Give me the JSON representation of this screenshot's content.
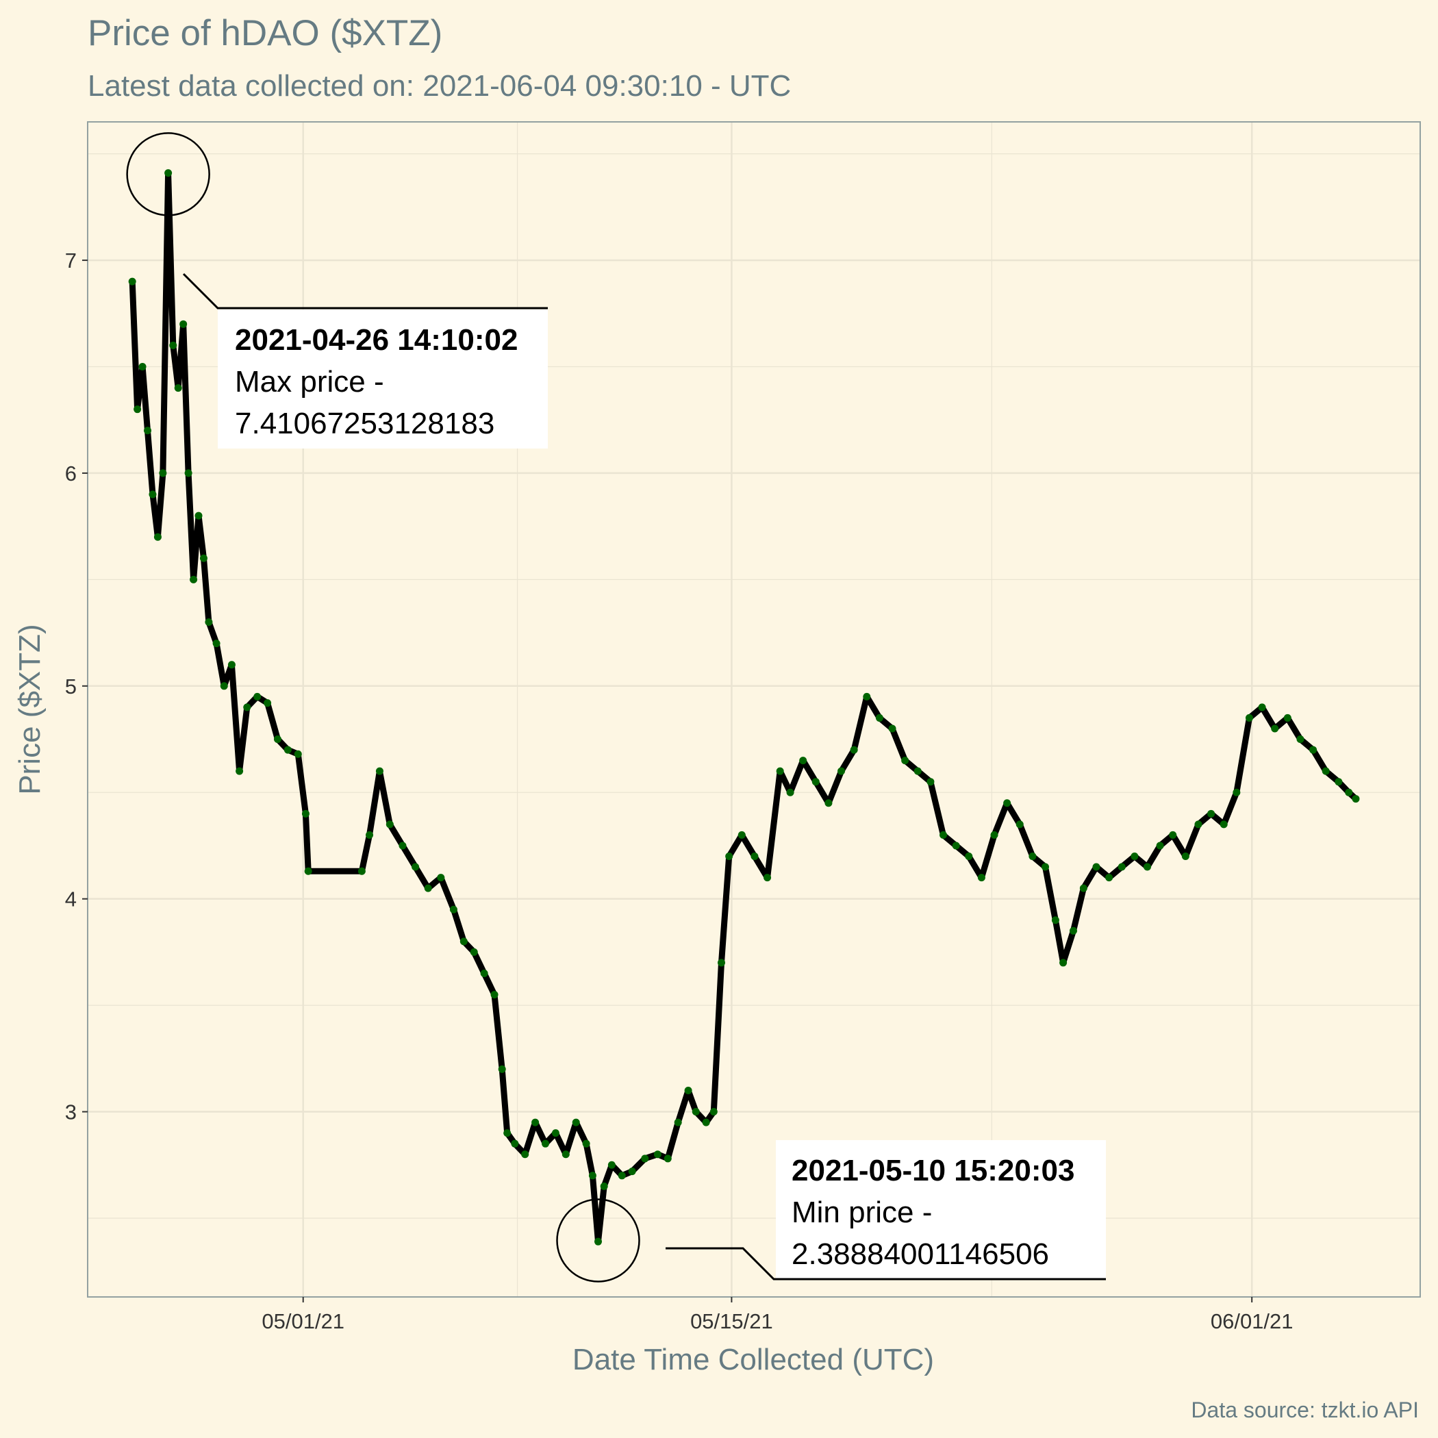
{
  "chart_data": {
    "type": "line",
    "title": "Price of hDAO ($XTZ)",
    "subtitle": "Latest data collected on: 2021-06-04 09:30:10  - UTC",
    "xlabel": "Date Time Collected (UTC)",
    "ylabel": "Price ($XTZ)",
    "caption": "Data source: tzkt.io API",
    "x_ticks": [
      "05/01/21",
      "05/15/21",
      "06/01/21"
    ],
    "y_ticks": [
      "3",
      "4",
      "5",
      "6",
      "7"
    ],
    "xlim": [
      "2021-04-23T23:00",
      "2021-06-06T12:00"
    ],
    "ylim": [
      2.13,
      7.65
    ],
    "grid": true,
    "series": [
      {
        "style": "black segments with dark-green points",
        "points": [
          [
            "2021-04-25T10:00",
            6.9
          ],
          [
            "2021-04-25T14:00",
            6.3
          ],
          [
            "2021-04-25T18:00",
            6.5
          ],
          [
            "2021-04-25T22:00",
            6.2
          ],
          [
            "2021-04-26T02:00",
            5.9
          ],
          [
            "2021-04-26T06:00",
            5.7
          ],
          [
            "2021-04-26T10:00",
            6.0
          ],
          [
            "2021-04-26T14:10",
            7.41
          ],
          [
            "2021-04-26T18:00",
            6.6
          ],
          [
            "2021-04-26T22:00",
            6.4
          ],
          [
            "2021-04-27T02:00",
            6.7
          ],
          [
            "2021-04-27T06:00",
            6.0
          ],
          [
            "2021-04-27T10:00",
            5.5
          ],
          [
            "2021-04-27T14:00",
            5.8
          ],
          [
            "2021-04-27T18:00",
            5.6
          ],
          [
            "2021-04-27T22:00",
            5.3
          ],
          [
            "2021-04-28T04:00",
            5.2
          ],
          [
            "2021-04-28T10:00",
            5.0
          ],
          [
            "2021-04-28T16:00",
            5.1
          ],
          [
            "2021-04-28T22:00",
            4.6
          ],
          [
            "2021-04-29T04:00",
            4.9
          ],
          [
            "2021-04-29T12:00",
            4.95
          ],
          [
            "2021-04-29T20:00",
            4.92
          ],
          [
            "2021-04-30T04:00",
            4.75
          ],
          [
            "2021-04-30T12:00",
            4.7
          ],
          [
            "2021-04-30T20:00",
            4.68
          ],
          [
            "2021-05-01T02:00",
            4.4
          ],
          [
            "2021-05-01T04:00",
            4.13
          ],
          [
            "2021-05-02T22:00",
            4.13
          ],
          [
            "2021-05-03T04:00",
            4.3
          ],
          [
            "2021-05-03T12:00",
            4.6
          ],
          [
            "2021-05-03T20:00",
            4.35
          ],
          [
            "2021-05-04T06:00",
            4.25
          ],
          [
            "2021-05-04T16:00",
            4.15
          ],
          [
            "2021-05-05T02:00",
            4.05
          ],
          [
            "2021-05-05T12:00",
            4.1
          ],
          [
            "2021-05-05T22:00",
            3.95
          ],
          [
            "2021-05-06T06:00",
            3.8
          ],
          [
            "2021-05-06T14:00",
            3.75
          ],
          [
            "2021-05-06T22:00",
            3.65
          ],
          [
            "2021-05-07T06:00",
            3.55
          ],
          [
            "2021-05-07T12:00",
            3.2
          ],
          [
            "2021-05-07T16:00",
            2.9
          ],
          [
            "2021-05-07T22:00",
            2.85
          ],
          [
            "2021-05-08T06:00",
            2.8
          ],
          [
            "2021-05-08T14:00",
            2.95
          ],
          [
            "2021-05-08T22:00",
            2.85
          ],
          [
            "2021-05-09T06:00",
            2.9
          ],
          [
            "2021-05-09T14:00",
            2.8
          ],
          [
            "2021-05-09T22:00",
            2.95
          ],
          [
            "2021-05-10T06:00",
            2.85
          ],
          [
            "2021-05-10T11:00",
            2.7
          ],
          [
            "2021-05-10T15:20",
            2.39
          ],
          [
            "2021-05-10T20:00",
            2.65
          ],
          [
            "2021-05-11T02:00",
            2.75
          ],
          [
            "2021-05-11T10:00",
            2.7
          ],
          [
            "2021-05-11T18:00",
            2.72
          ],
          [
            "2021-05-12T04:00",
            2.78
          ],
          [
            "2021-05-12T14:00",
            2.8
          ],
          [
            "2021-05-12T22:00",
            2.78
          ],
          [
            "2021-05-13T06:00",
            2.95
          ],
          [
            "2021-05-13T14:00",
            3.1
          ],
          [
            "2021-05-13T20:00",
            3.0
          ],
          [
            "2021-05-14T04:00",
            2.95
          ],
          [
            "2021-05-14T10:00",
            3.0
          ],
          [
            "2021-05-14T16:00",
            3.7
          ],
          [
            "2021-05-14T22:00",
            4.2
          ],
          [
            "2021-05-15T08:00",
            4.3
          ],
          [
            "2021-05-15T18:00",
            4.2
          ],
          [
            "2021-05-16T04:00",
            4.1
          ],
          [
            "2021-05-16T14:00",
            4.6
          ],
          [
            "2021-05-16T22:00",
            4.5
          ],
          [
            "2021-05-17T08:00",
            4.65
          ],
          [
            "2021-05-17T18:00",
            4.55
          ],
          [
            "2021-05-18T04:00",
            4.45
          ],
          [
            "2021-05-18T14:00",
            4.6
          ],
          [
            "2021-05-19T00:00",
            4.7
          ],
          [
            "2021-05-19T10:00",
            4.95
          ],
          [
            "2021-05-19T20:00",
            4.85
          ],
          [
            "2021-05-20T06:00",
            4.8
          ],
          [
            "2021-05-20T16:00",
            4.65
          ],
          [
            "2021-05-21T02:00",
            4.6
          ],
          [
            "2021-05-21T12:00",
            4.55
          ],
          [
            "2021-05-21T22:00",
            4.3
          ],
          [
            "2021-05-22T08:00",
            4.25
          ],
          [
            "2021-05-22T18:00",
            4.2
          ],
          [
            "2021-05-23T04:00",
            4.1
          ],
          [
            "2021-05-23T14:00",
            4.3
          ],
          [
            "2021-05-24T00:00",
            4.45
          ],
          [
            "2021-05-24T10:00",
            4.35
          ],
          [
            "2021-05-24T20:00",
            4.2
          ],
          [
            "2021-05-25T06:00",
            4.15
          ],
          [
            "2021-05-25T14:00",
            3.9
          ],
          [
            "2021-05-25T20:00",
            3.7
          ],
          [
            "2021-05-26T04:00",
            3.85
          ],
          [
            "2021-05-26T12:00",
            4.05
          ],
          [
            "2021-05-26T22:00",
            4.15
          ],
          [
            "2021-05-27T08:00",
            4.1
          ],
          [
            "2021-05-27T18:00",
            4.15
          ],
          [
            "2021-05-28T04:00",
            4.2
          ],
          [
            "2021-05-28T14:00",
            4.15
          ],
          [
            "2021-05-29T00:00",
            4.25
          ],
          [
            "2021-05-29T10:00",
            4.3
          ],
          [
            "2021-05-29T20:00",
            4.2
          ],
          [
            "2021-05-30T06:00",
            4.35
          ],
          [
            "2021-05-30T16:00",
            4.4
          ],
          [
            "2021-05-31T02:00",
            4.35
          ],
          [
            "2021-05-31T12:00",
            4.5
          ],
          [
            "2021-05-31T22:00",
            4.85
          ],
          [
            "2021-06-01T08:00",
            4.9
          ],
          [
            "2021-06-01T18:00",
            4.8
          ],
          [
            "2021-06-02T04:00",
            4.85
          ],
          [
            "2021-06-02T14:00",
            4.75
          ],
          [
            "2021-06-03T00:00",
            4.7
          ],
          [
            "2021-06-03T10:00",
            4.6
          ],
          [
            "2021-06-03T20:00",
            4.55
          ],
          [
            "2021-06-04T04:00",
            4.5
          ],
          [
            "2021-06-04T09:30",
            4.47
          ]
        ]
      }
    ],
    "annotations": [
      {
        "name": "max",
        "time": "2021-04-26 14:10:02",
        "x": "2021-04-26T14:10",
        "y": 7.41067253128183,
        "lines": [
          "2021-04-26 14:10:02",
          "Max price -",
          "7.41067253128183"
        ]
      },
      {
        "name": "min",
        "time": "2021-05-10 15:20:03",
        "x": "2021-05-10T15:20",
        "y": 2.38884001146506,
        "lines": [
          "2021-05-10 15:20:03",
          "Min price -",
          "2.38884001146506"
        ]
      }
    ]
  },
  "colors": {
    "background": "#fdf6e3",
    "grid": "#eae4d2",
    "axis": "#93a1a1",
    "line": "#000000",
    "points": "#006400",
    "text_muted": "#657b83"
  }
}
